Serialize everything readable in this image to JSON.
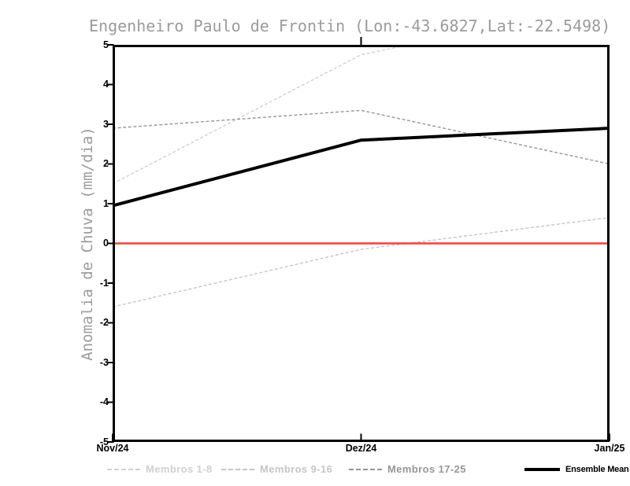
{
  "chart_data": {
    "type": "line",
    "title": "Engenheiro Paulo de Frontin (Lon:-43.6827,Lat:-22.5498)",
    "ylabel": "Anomalia de Chuva (mm/dia)",
    "x_categories": [
      "Nov/24",
      "Dez/24",
      "Jan/25"
    ],
    "ylim": [
      -5,
      5
    ],
    "yticks": [
      5,
      4,
      3,
      2,
      1,
      0,
      -1,
      -2,
      -3,
      -4,
      -5
    ],
    "grid": false,
    "clip_to_ylim": true,
    "legend_position": "bottom",
    "zero_line": {
      "value": 0,
      "color": "#fa3c3c"
    },
    "series": [
      {
        "name": "Membros 1-8",
        "values": [
          1.5,
          4.75,
          6.05
        ],
        "color": "#d0d0d0",
        "style": "dashed"
      },
      {
        "name": "Membros 9-16",
        "values": [
          -1.6,
          -0.15,
          0.65
        ],
        "color": "#c6c6c6",
        "style": "dashed"
      },
      {
        "name": "Membros 17-25",
        "values": [
          2.9,
          3.35,
          2.0
        ],
        "color": "#969696",
        "style": "dashed"
      },
      {
        "name": "Ensemble Mean",
        "values": [
          0.95,
          2.6,
          2.9
        ],
        "color": "#000000",
        "style": "solid-thick"
      }
    ]
  }
}
